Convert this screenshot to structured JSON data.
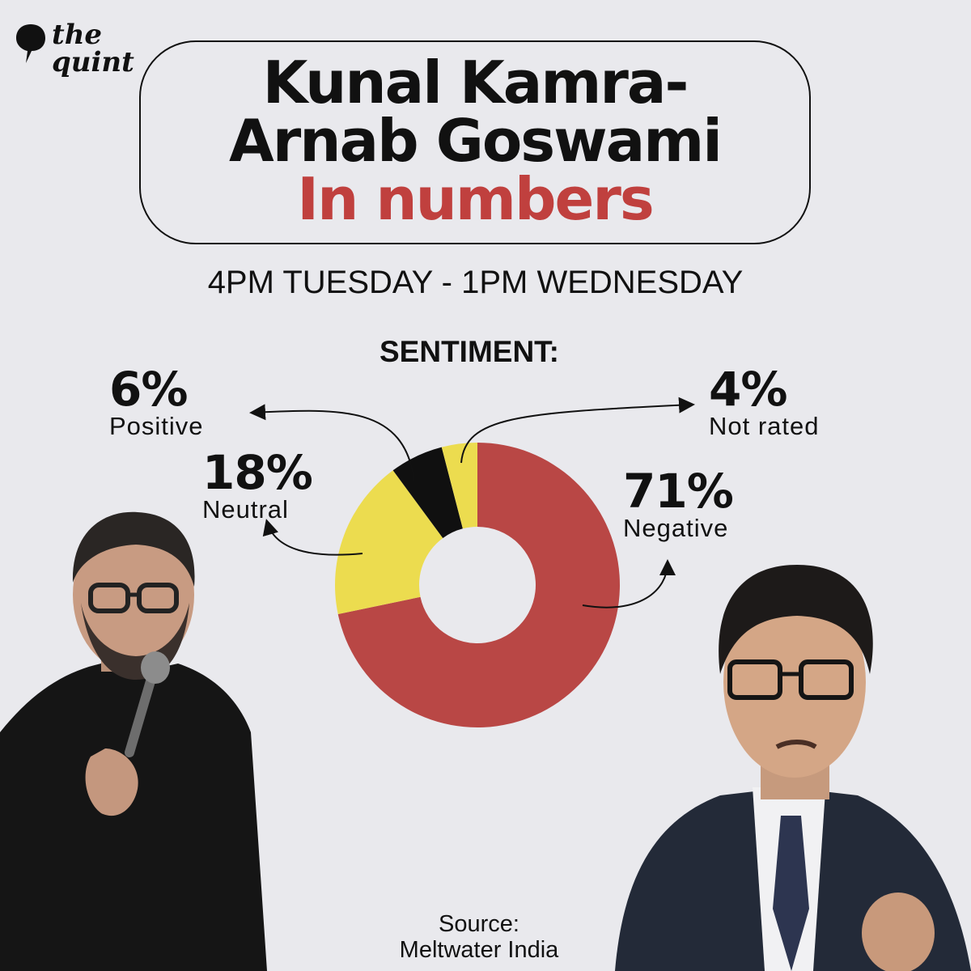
{
  "brand": {
    "line1": "the",
    "line2": "quint"
  },
  "title": {
    "line1": "Kunal Kamra-",
    "line2": "Arnab Goswami",
    "line3": "In numbers"
  },
  "subtitle": "4PM TUESDAY - 1PM WEDNESDAY",
  "chart_data": {
    "type": "pie",
    "title": "SENTIMENT:",
    "donut": true,
    "slices": [
      {
        "label": "Negative",
        "display_value": "71%",
        "value": 71,
        "color": "#b94745"
      },
      {
        "label": "Neutral",
        "display_value": "18%",
        "value": 18,
        "color": "#ecdc4f"
      },
      {
        "label": "Positive",
        "display_value": "6%",
        "value": 6,
        "color": "#101010"
      },
      {
        "label": "Not rated",
        "display_value": "4%",
        "value": 4,
        "color": "#ecdc4f"
      }
    ]
  },
  "source": {
    "line1": "Source:",
    "line2": "Meltwater India"
  }
}
